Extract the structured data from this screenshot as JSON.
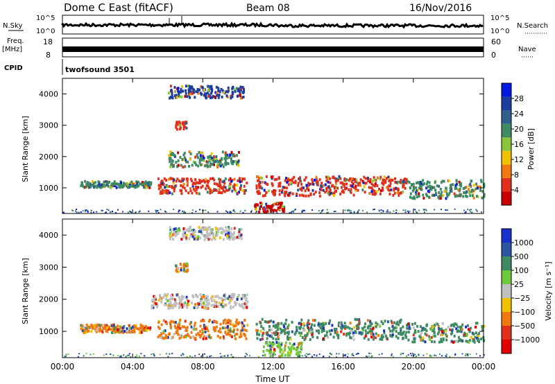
{
  "header": {
    "station": "Dome C East (fitACF)",
    "beam": "Beam 08",
    "date": "16/Nov/2016"
  },
  "top_strips": {
    "nsky_label": "N.Sky",
    "nsky_ticks": [
      "10^5",
      "10^0"
    ],
    "nsearch_label": "N.Search",
    "nsearch_ticks": [
      "10^5",
      "10^0"
    ],
    "freq_label": "Freq.",
    "freq_unit": "[MHz]",
    "freq_ticks": [
      "18",
      "8"
    ],
    "nave_label": "Nave",
    "nave_ticks": [
      "60",
      "0"
    ],
    "cpid_label": "CPID",
    "cpid_value": "twofsound 3501"
  },
  "chart_data": [
    {
      "type": "heatmap",
      "name": "power",
      "ylabel": "Slant Range [km]",
      "yticks": [
        "4000",
        "3000",
        "2000",
        "1000"
      ],
      "ylim": [
        180,
        4500
      ],
      "xlim": [
        0,
        24
      ],
      "colorbar_label": "Power [dB]",
      "colorbar_ticks": [
        "28",
        "24",
        "20",
        "16",
        "12",
        "8",
        "4"
      ],
      "colorbar_colors": [
        "#0018e0",
        "#1e3c9c",
        "#2f5f8d",
        "#3e8a63",
        "#8cc43c",
        "#f2c100",
        "#f07810",
        "#e0301c",
        "#c80000"
      ],
      "blobs": [
        {
          "t0": 11.0,
          "t1": 16.0,
          "r0": 780,
          "r1": 1420,
          "color": "#e0301c"
        },
        {
          "t0": 16.0,
          "t1": 19.6,
          "r0": 800,
          "r1": 1400,
          "color": "#e0301c"
        },
        {
          "t0": 19.6,
          "t1": 24.0,
          "r0": 700,
          "r1": 1300,
          "color": "#3e8a63"
        },
        {
          "t0": 5.4,
          "t1": 10.5,
          "r0": 850,
          "r1": 1350,
          "color": "#e0301c"
        },
        {
          "t0": 10.9,
          "t1": 12.6,
          "r0": 250,
          "r1": 560,
          "color": "#c80000"
        },
        {
          "t0": 6.4,
          "t1": 7.1,
          "r0": 2900,
          "r1": 3150,
          "color": "#e0301c"
        },
        {
          "t0": 1.0,
          "t1": 5.0,
          "r0": 1050,
          "r1": 1250,
          "color": "#3e8a63"
        },
        {
          "t0": 6.0,
          "t1": 10.0,
          "r0": 1700,
          "r1": 2200,
          "color": "#3e8a63"
        },
        {
          "t0": 6.0,
          "t1": 10.3,
          "r0": 3900,
          "r1": 4300,
          "color": "#1e3c9c"
        }
      ]
    },
    {
      "type": "heatmap",
      "name": "velocity",
      "ylabel": "Slant Range [km]",
      "yticks": [
        "4000",
        "3000",
        "2000",
        "1000"
      ],
      "ylim": [
        180,
        4500
      ],
      "xlim": [
        0,
        24
      ],
      "xticks": [
        "00:00",
        "04:00",
        "08:00",
        "12:00",
        "16:00",
        "20:00",
        "00:00"
      ],
      "xlabel": "Time UT",
      "colorbar_label": "Velocity [m s⁻¹]",
      "colorbar_ticks": [
        "1000",
        "500",
        "100",
        "25",
        "−25",
        "−100",
        "−500",
        "−1000"
      ],
      "colorbar_colors": [
        "#1a2fcc",
        "#2d55a0",
        "#3e8a63",
        "#6cc83c",
        "#c0c0c0",
        "#f2c100",
        "#f07810",
        "#e0301c",
        "#e00000"
      ],
      "blobs": [
        {
          "t0": 11.0,
          "t1": 19.6,
          "r0": 780,
          "r1": 1420,
          "color": "#3e8a63"
        },
        {
          "t0": 19.6,
          "t1": 24.0,
          "r0": 700,
          "r1": 1300,
          "color": "#3e8a63"
        },
        {
          "t0": 5.4,
          "t1": 10.5,
          "r0": 800,
          "r1": 1400,
          "color": "#f07810"
        },
        {
          "t0": 1.0,
          "t1": 5.0,
          "r0": 1000,
          "r1": 1250,
          "color": "#f07810"
        },
        {
          "t0": 11.4,
          "t1": 13.6,
          "r0": 250,
          "r1": 700,
          "color": "#6cc83c"
        },
        {
          "t0": 6.4,
          "t1": 7.1,
          "r0": 2900,
          "r1": 3150,
          "color": "#f07810"
        },
        {
          "t0": 5.0,
          "t1": 10.5,
          "r0": 1750,
          "r1": 2200,
          "color": "#c0c0c0"
        },
        {
          "t0": 6.0,
          "t1": 10.3,
          "r0": 3900,
          "r1": 4300,
          "color": "#c0c0c0"
        }
      ]
    }
  ]
}
